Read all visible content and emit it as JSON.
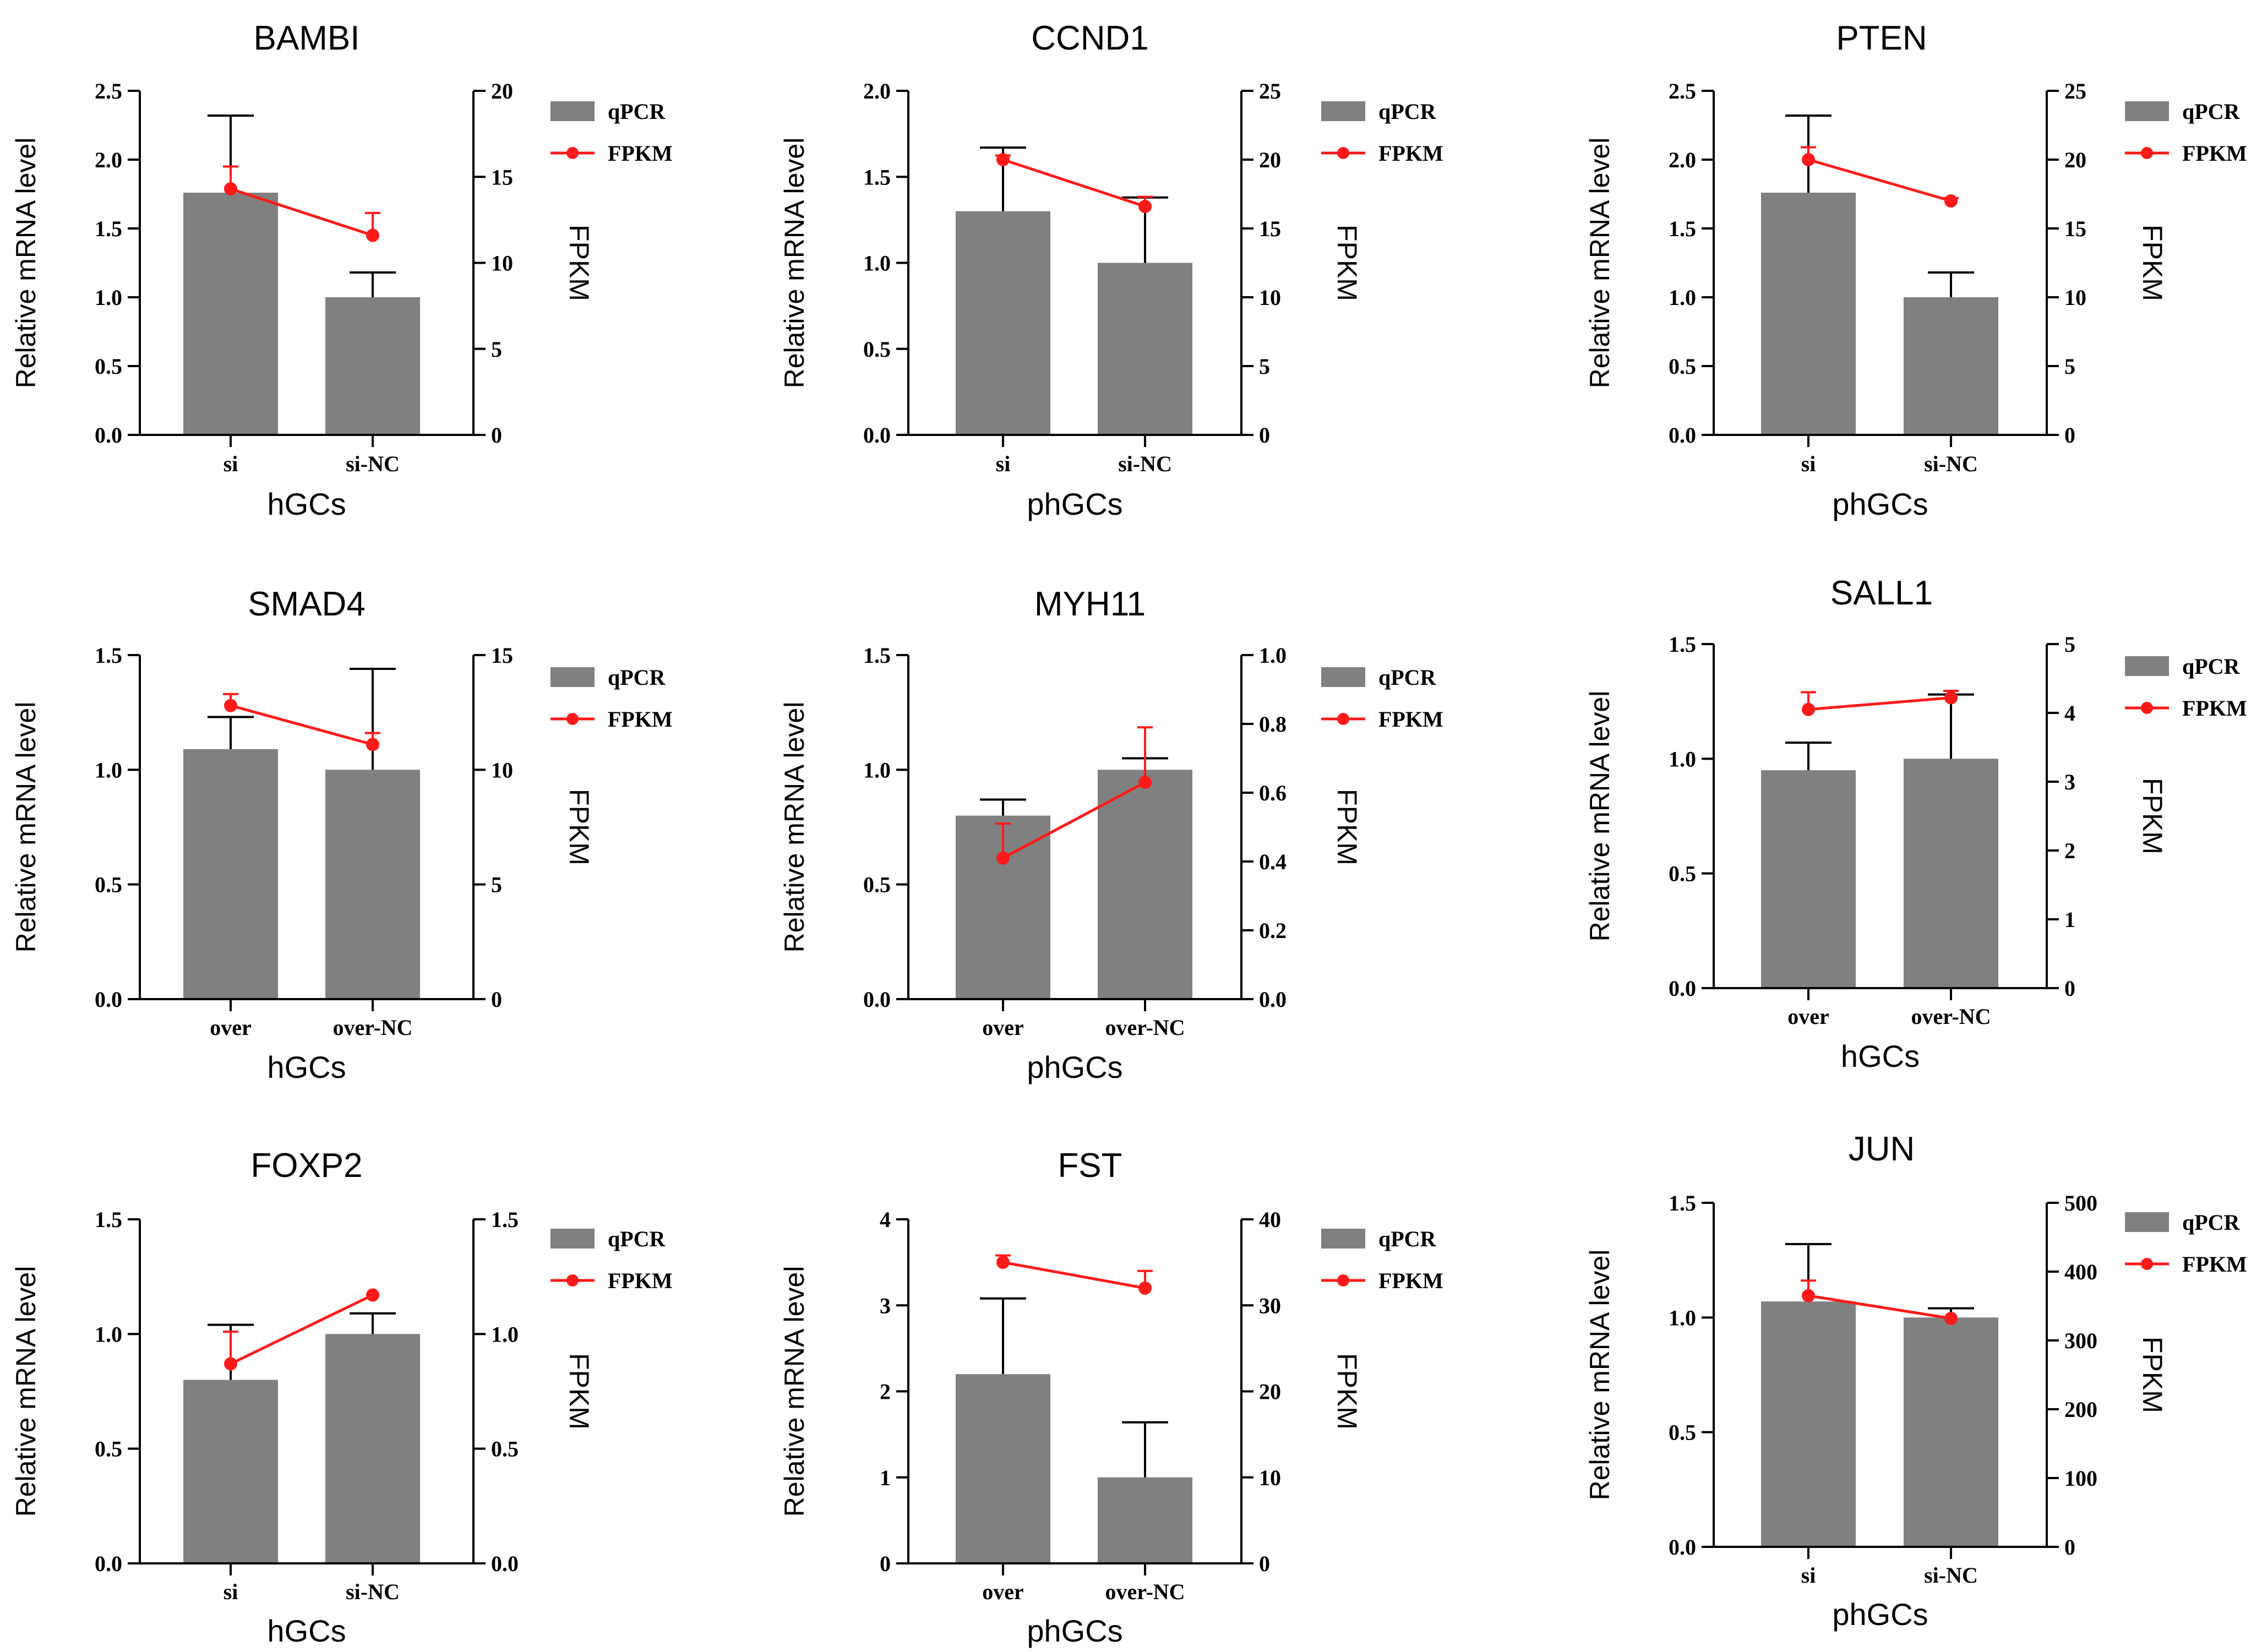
{
  "figure": {
    "ylabel_left": "Relative mRNA level",
    "ylabel_right": "FPKM"
  },
  "legend": {
    "bar_label": "qPCR",
    "line_label": "FPKM"
  },
  "colors": {
    "bar": "#808080",
    "line": "#ff1a1a",
    "axis": "#000000"
  },
  "chart_data": [
    {
      "type": "bar+line",
      "title": "BAMBI",
      "xlabel": "hGCs",
      "categories": [
        "si",
        "si-NC"
      ],
      "left_axis": {
        "label": "Relative mRNA level",
        "ylim": [
          0,
          2.5
        ],
        "ticks": [
          "0.0",
          "0.5",
          "1.0",
          "1.5",
          "2.0",
          "2.5"
        ]
      },
      "right_axis": {
        "label": "FPKM",
        "ylim": [
          0,
          20
        ],
        "ticks": [
          "0",
          "5",
          "10",
          "15",
          "20"
        ]
      },
      "series": [
        {
          "name": "qPCR",
          "type": "bar",
          "axis": "left",
          "values": [
            1.76,
            1.0
          ],
          "error": [
            0.56,
            0.18
          ]
        },
        {
          "name": "FPKM",
          "type": "line",
          "axis": "right",
          "values": [
            14.3,
            11.6
          ],
          "error": [
            1.3,
            1.3
          ]
        }
      ]
    },
    {
      "type": "bar+line",
      "title": "CCND1",
      "xlabel": "phGCs",
      "categories": [
        "si",
        "si-NC"
      ],
      "left_axis": {
        "label": "Relative mRNA level",
        "ylim": [
          0,
          2.0
        ],
        "ticks": [
          "0.0",
          "0.5",
          "1.0",
          "1.5",
          "2.0"
        ]
      },
      "right_axis": {
        "label": "FPKM",
        "ylim": [
          0,
          25
        ],
        "ticks": [
          "0",
          "5",
          "10",
          "15",
          "20",
          "25"
        ]
      },
      "series": [
        {
          "name": "qPCR",
          "type": "bar",
          "axis": "left",
          "values": [
            1.3,
            1.0
          ],
          "error": [
            0.37,
            0.38
          ]
        },
        {
          "name": "FPKM",
          "type": "line",
          "axis": "right",
          "values": [
            20.0,
            16.6
          ],
          "error": [
            0.3,
            0.7
          ]
        }
      ]
    },
    {
      "type": "bar+line",
      "title": "PTEN",
      "xlabel": "phGCs",
      "categories": [
        "si",
        "si-NC"
      ],
      "left_axis": {
        "label": "Relative mRNA level",
        "ylim": [
          0,
          2.5
        ],
        "ticks": [
          "0.0",
          "0.5",
          "1.0",
          "1.5",
          "2.0",
          "2.5"
        ]
      },
      "right_axis": {
        "label": "FPKM",
        "ylim": [
          0,
          25
        ],
        "ticks": [
          "0",
          "5",
          "10",
          "15",
          "20",
          "25"
        ]
      },
      "series": [
        {
          "name": "qPCR",
          "type": "bar",
          "axis": "left",
          "values": [
            1.76,
            1.0
          ],
          "error": [
            0.56,
            0.18
          ]
        },
        {
          "name": "FPKM",
          "type": "line",
          "axis": "right",
          "values": [
            20.0,
            17.0
          ],
          "error": [
            0.9,
            0.2
          ]
        }
      ]
    },
    {
      "type": "bar+line",
      "title": "SMAD4",
      "xlabel": "hGCs",
      "categories": [
        "over",
        "over-NC"
      ],
      "left_axis": {
        "label": "Relative mRNA level",
        "ylim": [
          0,
          1.5
        ],
        "ticks": [
          "0.0",
          "0.5",
          "1.0",
          "1.5"
        ]
      },
      "right_axis": {
        "label": "FPKM",
        "ylim": [
          0,
          15
        ],
        "ticks": [
          "0",
          "5",
          "10",
          "15"
        ]
      },
      "series": [
        {
          "name": "qPCR",
          "type": "bar",
          "axis": "left",
          "values": [
            1.09,
            1.0
          ],
          "error": [
            0.14,
            0.44
          ]
        },
        {
          "name": "FPKM",
          "type": "line",
          "axis": "right",
          "values": [
            12.8,
            11.1
          ],
          "error": [
            0.5,
            0.5
          ]
        }
      ]
    },
    {
      "type": "bar+line",
      "title": "MYH11",
      "xlabel": "phGCs",
      "categories": [
        "over",
        "over-NC"
      ],
      "left_axis": {
        "label": "Relative mRNA level",
        "ylim": [
          0,
          1.5
        ],
        "ticks": [
          "0.0",
          "0.5",
          "1.0",
          "1.5"
        ]
      },
      "right_axis": {
        "label": "FPKM",
        "ylim": [
          0,
          1.0
        ],
        "ticks": [
          "0.0",
          "0.2",
          "0.4",
          "0.6",
          "0.8",
          "1.0"
        ]
      },
      "series": [
        {
          "name": "qPCR",
          "type": "bar",
          "axis": "left",
          "values": [
            0.8,
            1.0
          ],
          "error": [
            0.07,
            0.05
          ]
        },
        {
          "name": "FPKM",
          "type": "line",
          "axis": "right",
          "values": [
            0.41,
            0.63
          ],
          "error": [
            0.1,
            0.16
          ]
        }
      ]
    },
    {
      "type": "bar+line",
      "title": "SALL1",
      "xlabel": "hGCs",
      "categories": [
        "over",
        "over-NC"
      ],
      "left_axis": {
        "label": "Relative mRNA level",
        "ylim": [
          0,
          1.5
        ],
        "ticks": [
          "0.0",
          "0.5",
          "1.0",
          "1.5"
        ]
      },
      "right_axis": {
        "label": "FPKM",
        "ylim": [
          0,
          5
        ],
        "ticks": [
          "0",
          "1",
          "2",
          "3",
          "4",
          "5"
        ]
      },
      "series": [
        {
          "name": "qPCR",
          "type": "bar",
          "axis": "left",
          "values": [
            0.95,
            1.0
          ],
          "error": [
            0.12,
            0.28
          ]
        },
        {
          "name": "FPKM",
          "type": "line",
          "axis": "right",
          "values": [
            4.05,
            4.22
          ],
          "error": [
            0.25,
            0.1
          ]
        }
      ]
    },
    {
      "type": "bar+line",
      "title": "FOXP2",
      "xlabel": "hGCs",
      "categories": [
        "si",
        "si-NC"
      ],
      "left_axis": {
        "label": "Relative mRNA level",
        "ylim": [
          0,
          1.5
        ],
        "ticks": [
          "0.0",
          "0.5",
          "1.0",
          "1.5"
        ]
      },
      "right_axis": {
        "label": "FPKM",
        "ylim": [
          0,
          1.5
        ],
        "ticks": [
          "0.0",
          "0.5",
          "1.0",
          "1.5"
        ]
      },
      "series": [
        {
          "name": "qPCR",
          "type": "bar",
          "axis": "left",
          "values": [
            0.8,
            1.0
          ],
          "error": [
            0.24,
            0.09
          ]
        },
        {
          "name": "FPKM",
          "type": "line",
          "axis": "right",
          "values": [
            0.87,
            1.17
          ],
          "error": [
            0.14,
            0.0
          ]
        }
      ]
    },
    {
      "type": "bar+line",
      "title": "FST",
      "xlabel": "phGCs",
      "categories": [
        "over",
        "over-NC"
      ],
      "left_axis": {
        "label": "Relative mRNA level",
        "ylim": [
          0,
          4
        ],
        "ticks": [
          "0",
          "1",
          "2",
          "3",
          "4"
        ]
      },
      "right_axis": {
        "label": "FPKM",
        "ylim": [
          0,
          40
        ],
        "ticks": [
          "0",
          "10",
          "20",
          "30",
          "40"
        ]
      },
      "series": [
        {
          "name": "qPCR",
          "type": "bar",
          "axis": "left",
          "values": [
            2.2,
            1.0
          ],
          "error": [
            0.88,
            0.64
          ]
        },
        {
          "name": "FPKM",
          "type": "line",
          "axis": "right",
          "values": [
            35.0,
            32.0
          ],
          "error": [
            0.8,
            2.0
          ]
        }
      ]
    },
    {
      "type": "bar+line",
      "title": "JUN",
      "xlabel": "phGCs",
      "categories": [
        "si",
        "si-NC"
      ],
      "left_axis": {
        "label": "Relative mRNA level",
        "ylim": [
          0,
          1.5
        ],
        "ticks": [
          "0.0",
          "0.5",
          "1.0",
          "1.5"
        ]
      },
      "right_axis": {
        "label": "FPKM",
        "ylim": [
          0,
          500
        ],
        "ticks": [
          "0",
          "100",
          "200",
          "300",
          "400",
          "500"
        ]
      },
      "series": [
        {
          "name": "qPCR",
          "type": "bar",
          "axis": "left",
          "values": [
            1.07,
            1.0
          ],
          "error": [
            0.25,
            0.04
          ]
        },
        {
          "name": "FPKM",
          "type": "line",
          "axis": "right",
          "values": [
            365,
            332
          ],
          "error": [
            22,
            0
          ]
        }
      ]
    }
  ]
}
